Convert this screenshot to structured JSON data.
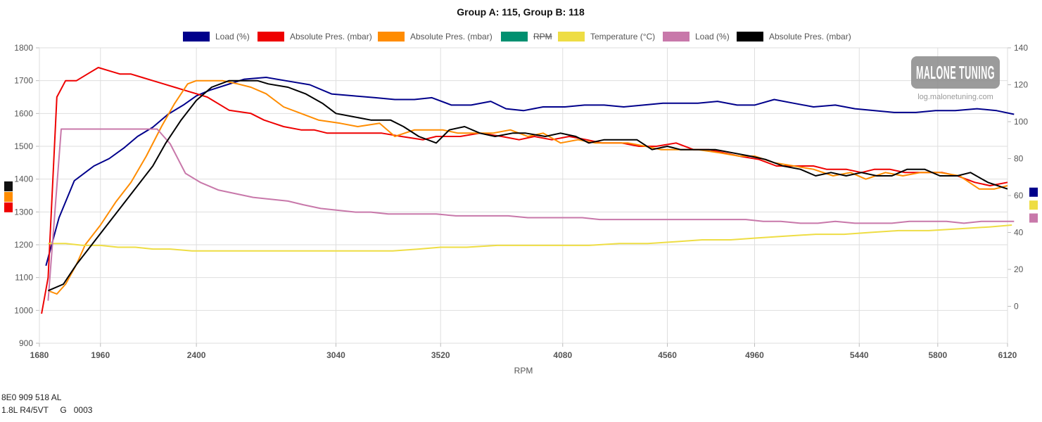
{
  "chart_data": {
    "type": "line",
    "title": "Group A: 115, Group B: 118",
    "xlabel": "RPM",
    "ylabel": "",
    "xlim": [
      1680,
      6120
    ],
    "x_ticks": [
      1680,
      1960,
      2400,
      3040,
      3520,
      4080,
      4560,
      4960,
      5440,
      5800,
      6120
    ],
    "ylim_left": [
      900,
      1800
    ],
    "left_ticks": [
      900,
      1000,
      1100,
      1200,
      1300,
      1400,
      1500,
      1600,
      1700,
      1800
    ],
    "ylim_right": [
      -20,
      140
    ],
    "right_ticks": [
      0,
      20,
      40,
      60,
      80,
      100,
      120,
      140
    ],
    "grid": true,
    "legend_position": "top",
    "series": [
      {
        "name": "Load (%)",
        "color": "#00008b",
        "axis": "right",
        "strikethrough": false,
        "x": [
          1710,
          1770,
          1840,
          1930,
          2000,
          2070,
          2130,
          2200,
          2270,
          2340,
          2400,
          2460,
          2540,
          2620,
          2720,
          2820,
          2920,
          3020,
          3120,
          3220,
          3310,
          3400,
          3480,
          3570,
          3660,
          3750,
          3820,
          3900,
          3990,
          4090,
          4180,
          4270,
          4360,
          4450,
          4540,
          4630,
          4700,
          4790,
          4880,
          4960,
          5050,
          5140,
          5230,
          5330,
          5420,
          5510,
          5600,
          5700,
          5790,
          5880,
          5980,
          6070,
          6150
        ],
        "values": [
          22,
          48,
          68,
          76,
          80,
          86,
          92,
          97,
          104,
          109,
          114,
          117,
          120,
          123,
          124,
          122,
          120,
          115,
          114,
          113,
          112,
          112,
          113,
          109,
          109,
          111,
          107,
          106,
          108,
          108,
          109,
          109,
          108,
          109,
          110,
          110,
          110,
          111,
          109,
          109,
          112,
          110,
          108,
          109,
          107,
          106,
          105,
          105,
          106,
          106,
          107,
          106,
          104
        ]
      },
      {
        "name": "Absolute Pres. (mbar)",
        "color": "#ee0000",
        "axis": "left",
        "strikethrough": false,
        "x": [
          1690,
          1720,
          1760,
          1800,
          1850,
          1900,
          1950,
          2000,
          2050,
          2100,
          2150,
          2200,
          2250,
          2300,
          2350,
          2400,
          2450,
          2550,
          2650,
          2710,
          2800,
          2880,
          2940,
          3000,
          3060,
          3140,
          3250,
          3340,
          3440,
          3500,
          3560,
          3610,
          3700,
          3800,
          3880,
          3950,
          4030,
          4110,
          4190,
          4260,
          4350,
          4430,
          4510,
          4600,
          4680,
          4750,
          4820,
          4890,
          4980,
          5060,
          5140,
          5230,
          5290,
          5380,
          5450,
          5510,
          5580,
          5650,
          5730,
          5820,
          5890,
          5970,
          6040,
          6120
        ],
        "values": [
          990,
          1100,
          1650,
          1700,
          1700,
          1720,
          1740,
          1730,
          1720,
          1720,
          1710,
          1700,
          1690,
          1680,
          1670,
          1660,
          1650,
          1610,
          1600,
          1580,
          1560,
          1550,
          1550,
          1540,
          1540,
          1540,
          1540,
          1530,
          1520,
          1530,
          1530,
          1530,
          1540,
          1530,
          1520,
          1530,
          1520,
          1530,
          1520,
          1510,
          1510,
          1500,
          1500,
          1510,
          1490,
          1490,
          1480,
          1470,
          1460,
          1440,
          1440,
          1440,
          1430,
          1430,
          1420,
          1430,
          1430,
          1420,
          1420,
          1420,
          1410,
          1390,
          1380,
          1390
        ]
      },
      {
        "name": "Absolute Pres. (mbar)",
        "color": "#ff8c00",
        "axis": "left",
        "strikethrough": false,
        "x": [
          1720,
          1760,
          1800,
          1850,
          1890,
          1960,
          2030,
          2100,
          2170,
          2240,
          2300,
          2360,
          2400,
          2460,
          2520,
          2590,
          2650,
          2720,
          2800,
          2880,
          2960,
          3060,
          3140,
          3240,
          3310,
          3400,
          3460,
          3530,
          3600,
          3680,
          3760,
          3840,
          3920,
          3990,
          4070,
          4150,
          4230,
          4300,
          4380,
          4460,
          4530,
          4610,
          4700,
          4800,
          4890,
          4960,
          5050,
          5140,
          5230,
          5320,
          5400,
          5470,
          5560,
          5640,
          5720,
          5810,
          5900,
          5990,
          6060,
          6120
        ],
        "values": [
          1060,
          1050,
          1080,
          1140,
          1200,
          1260,
          1330,
          1390,
          1470,
          1560,
          1630,
          1690,
          1700,
          1700,
          1700,
          1690,
          1680,
          1660,
          1620,
          1600,
          1580,
          1570,
          1560,
          1570,
          1530,
          1550,
          1550,
          1550,
          1540,
          1540,
          1540,
          1550,
          1530,
          1540,
          1510,
          1520,
          1510,
          1510,
          1510,
          1500,
          1490,
          1490,
          1490,
          1480,
          1470,
          1470,
          1450,
          1440,
          1430,
          1410,
          1420,
          1400,
          1420,
          1410,
          1420,
          1420,
          1410,
          1370,
          1370,
          1380
        ]
      },
      {
        "name": "RPM",
        "color": "#009070",
        "axis": "left",
        "strikethrough": true,
        "x": [],
        "values": []
      },
      {
        "name": "Temperature (°C)",
        "color": "#eedd44",
        "axis": "right",
        "strikethrough": false,
        "x": [
          1720,
          1800,
          1880,
          1960,
          2040,
          2120,
          2200,
          2280,
          2380,
          2480,
          2600,
          2720,
          2860,
          2960,
          3060,
          3180,
          3300,
          3420,
          3520,
          3640,
          3780,
          3920,
          4060,
          4200,
          4340,
          4470,
          4600,
          4720,
          4850,
          4970,
          5100,
          5240,
          5370,
          5490,
          5620,
          5760,
          5900,
          6040,
          6140
        ],
        "values": [
          34,
          34,
          33,
          33,
          32,
          32,
          31,
          31,
          30,
          30,
          30,
          30,
          30,
          30,
          30,
          30,
          30,
          31,
          32,
          32,
          33,
          33,
          33,
          33,
          34,
          34,
          35,
          36,
          36,
          37,
          38,
          39,
          39,
          40,
          41,
          41,
          42,
          43,
          44
        ]
      },
      {
        "name": "Load (%)",
        "color": "#c878aa",
        "axis": "right",
        "strikethrough": false,
        "x": [
          1720,
          1780,
          1860,
          1930,
          2010,
          2080,
          2150,
          2220,
          2280,
          2350,
          2420,
          2500,
          2580,
          2660,
          2740,
          2820,
          2890,
          2970,
          3050,
          3130,
          3200,
          3280,
          3350,
          3430,
          3500,
          3590,
          3670,
          3750,
          3830,
          3920,
          4000,
          4080,
          4170,
          4250,
          4330,
          4420,
          4500,
          4590,
          4670,
          4750,
          4840,
          4920,
          5000,
          5080,
          5170,
          5250,
          5330,
          5420,
          5500,
          5590,
          5670,
          5760,
          5840,
          5920,
          6000,
          6080,
          6150
        ],
        "values": [
          3,
          96,
          96,
          96,
          96,
          96,
          96,
          96,
          88,
          72,
          67,
          63,
          61,
          59,
          58,
          57,
          55,
          53,
          52,
          51,
          51,
          50,
          50,
          50,
          50,
          49,
          49,
          49,
          49,
          48,
          48,
          48,
          48,
          47,
          47,
          47,
          47,
          47,
          47,
          47,
          47,
          47,
          46,
          46,
          45,
          45,
          46,
          45,
          45,
          45,
          46,
          46,
          46,
          45,
          46,
          46,
          46
        ]
      },
      {
        "name": "Absolute Pres. (mbar)",
        "color": "#000000",
        "axis": "left",
        "strikethrough": false,
        "x": [
          1720,
          1790,
          1850,
          1920,
          1990,
          2060,
          2130,
          2200,
          2260,
          2330,
          2400,
          2470,
          2550,
          2610,
          2680,
          2730,
          2820,
          2900,
          2980,
          3040,
          3120,
          3200,
          3290,
          3350,
          3420,
          3500,
          3560,
          3630,
          3700,
          3770,
          3850,
          3910,
          4000,
          4070,
          4140,
          4200,
          4270,
          4340,
          4420,
          4490,
          4560,
          4620,
          4700,
          4780,
          4860,
          4940,
          5010,
          5090,
          5170,
          5240,
          5310,
          5380,
          5450,
          5520,
          5590,
          5660,
          5740,
          5810,
          5890,
          5950,
          6030,
          6120
        ],
        "values": [
          1060,
          1080,
          1140,
          1200,
          1260,
          1320,
          1380,
          1440,
          1510,
          1580,
          1640,
          1680,
          1700,
          1700,
          1700,
          1690,
          1680,
          1660,
          1630,
          1600,
          1590,
          1580,
          1580,
          1560,
          1530,
          1510,
          1550,
          1560,
          1540,
          1530,
          1540,
          1540,
          1530,
          1540,
          1530,
          1510,
          1520,
          1520,
          1520,
          1490,
          1500,
          1490,
          1490,
          1490,
          1480,
          1470,
          1460,
          1440,
          1430,
          1410,
          1420,
          1410,
          1420,
          1410,
          1410,
          1430,
          1430,
          1410,
          1410,
          1420,
          1390,
          1370
        ]
      }
    ],
    "axis_markers": {
      "left": [
        {
          "value": 1378,
          "color": "#111111"
        },
        {
          "value": 1346,
          "color": "#ff8c00"
        },
        {
          "value": 1314,
          "color": "#ee0000"
        }
      ],
      "right": [
        {
          "value": 62,
          "color": "#00008b"
        },
        {
          "value": 55,
          "color": "#eedd44"
        },
        {
          "value": 48,
          "color": "#c878aa"
        }
      ]
    }
  },
  "watermark": {
    "logo_text": "MALONE TUNING",
    "url": "log.malonetuning.com"
  },
  "ecu": {
    "part_number": "8E0 909 518 AL",
    "engine_line": "1.8L R4/5VT     G   0003"
  }
}
